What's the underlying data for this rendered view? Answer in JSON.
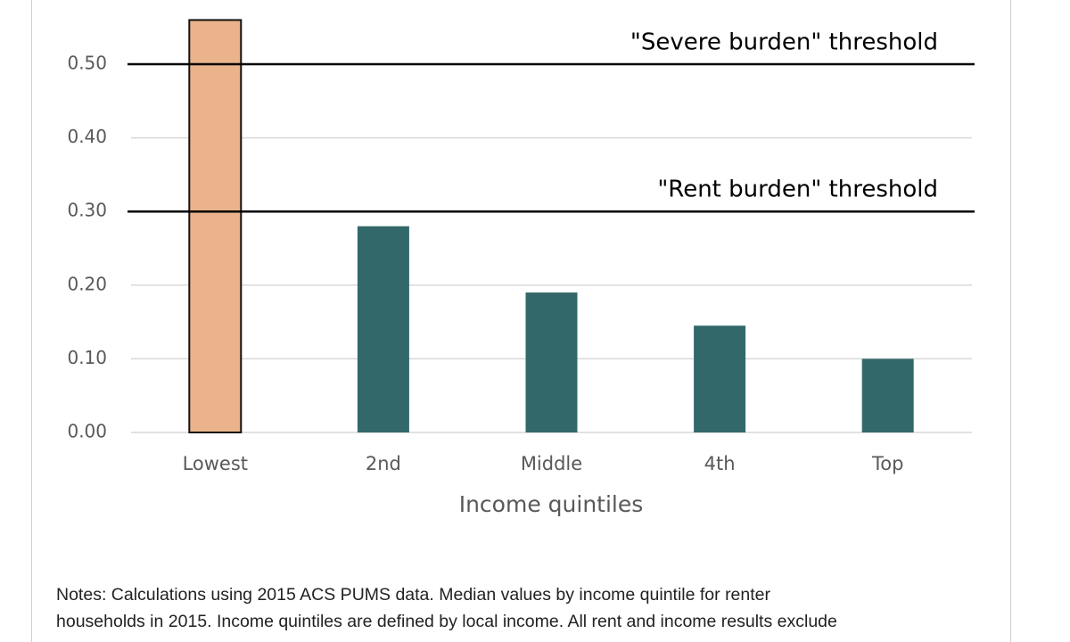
{
  "chart_data": {
    "type": "bar",
    "categories": [
      "Lowest",
      "2nd",
      "Middle",
      "4th",
      "Top"
    ],
    "values": [
      0.56,
      0.28,
      0.19,
      0.145,
      0.1
    ],
    "colors": [
      "#ebb38b",
      "#33686a",
      "#33686a",
      "#33686a",
      "#33686a"
    ],
    "xlabel": "Income quintiles",
    "ylim": [
      0,
      0.58
    ],
    "yticks": [
      {
        "value": 0,
        "label": "0.00"
      },
      {
        "value": 0.1,
        "label": "0.10"
      },
      {
        "value": 0.2,
        "label": "0.20"
      },
      {
        "value": 0.3,
        "label": "0.30"
      },
      {
        "value": 0.4,
        "label": "0.40"
      },
      {
        "value": 0.5,
        "label": "0.50"
      }
    ],
    "grid": true,
    "annotations": [
      {
        "value": 0.5,
        "label": "\"Severe burden\" threshold"
      },
      {
        "value": 0.3,
        "label": "\"Rent burden\" threshold"
      }
    ],
    "notes": [
      "Notes: Calculations using 2015 ACS PUMS data. Median values by income quintile for renter",
      "households in 2015. Income quintiles are defined by local income. All rent and income results exclude"
    ]
  }
}
